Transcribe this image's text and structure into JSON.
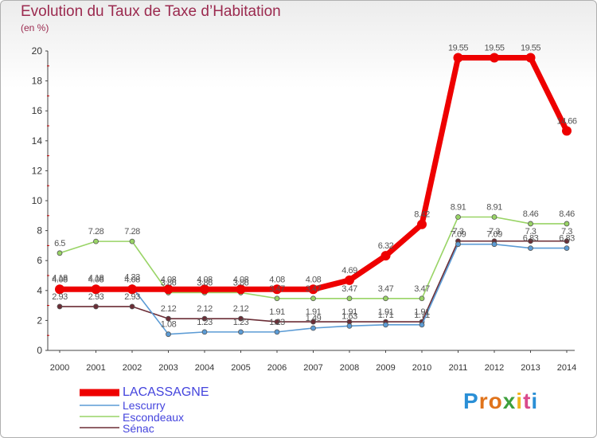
{
  "header": {
    "title": "Evolution du Taux de Taxe d’Habitation",
    "unit": "(en %)"
  },
  "logo": {
    "text": "Proxiti",
    "colors": [
      "#2a8fd6",
      "#e0731b",
      "#e0731b",
      "#3ea03e",
      "#f2b51c",
      "#d94a8c",
      "#2a8fd6"
    ]
  },
  "chart_data": {
    "type": "line",
    "x": [
      "2000",
      "2001",
      "2002",
      "2003",
      "2004",
      "2005",
      "2006",
      "2007",
      "2008",
      "2009",
      "2010",
      "2011",
      "2012",
      "2013",
      "2014"
    ],
    "ylim": [
      0,
      20
    ],
    "yticks": [
      "0",
      "2",
      "4",
      "6",
      "8",
      "10",
      "12",
      "14",
      "16",
      "18",
      "20"
    ],
    "grid": false,
    "legend_position": "bottom-left",
    "series": [
      {
        "name": "LACASSAGNE",
        "color": "#ee0000",
        "values": [
          4.08,
          4.08,
          4.08,
          4.08,
          4.08,
          4.08,
          4.08,
          4.08,
          4.69,
          6.32,
          8.42,
          19.55,
          19.55,
          19.55,
          14.66
        ],
        "labels": [
          "4.08",
          "4.08",
          "4.08",
          "4.08",
          "4.08",
          "4.08",
          "4.08",
          "4.08",
          "4.69",
          "6.32",
          "8.42",
          "19.55",
          "19.55",
          "19.55",
          "14.66"
        ]
      },
      {
        "name": "Lescurry",
        "color": "#5b9bd5",
        "values": [
          4.18,
          4.18,
          4.23,
          1.08,
          1.23,
          1.23,
          1.23,
          1.49,
          1.63,
          1.71,
          1.71,
          7.09,
          7.09,
          6.83,
          6.83
        ],
        "labels": [
          "4.18",
          "4.18",
          "4.23",
          "1.08",
          "1.23",
          "1.23",
          "1.23",
          "1.49",
          "1.63",
          "1.71",
          "1.71",
          "7.09",
          "7.09",
          "6.83",
          "6.83"
        ]
      },
      {
        "name": "Escondeaux",
        "color": "#99d466",
        "values": [
          6.5,
          7.28,
          7.28,
          3.86,
          3.86,
          3.86,
          3.47,
          3.47,
          3.47,
          3.47,
          3.47,
          8.91,
          8.91,
          8.46,
          8.46
        ],
        "labels": [
          "6.5",
          "7.28",
          "7.28",
          "3.86",
          "3.86",
          "3.86",
          "3.47",
          "3.47",
          "3.47",
          "3.47",
          "3.47",
          "8.91",
          "8.91",
          "8.46",
          "8.46"
        ]
      },
      {
        "name": "Sénac",
        "color": "#6b2d36",
        "values": [
          2.93,
          2.93,
          2.93,
          2.12,
          2.12,
          2.12,
          1.91,
          1.91,
          1.91,
          1.91,
          1.91,
          7.3,
          7.3,
          7.3,
          7.3
        ],
        "labels": [
          "2.93",
          "2.93",
          "2.93",
          "2.12",
          "2.12",
          "2.12",
          "1.91",
          "1.91",
          "1.91",
          "1.91",
          "1.91",
          "7.3",
          "7.3",
          "7.3",
          "7.3"
        ]
      }
    ]
  }
}
